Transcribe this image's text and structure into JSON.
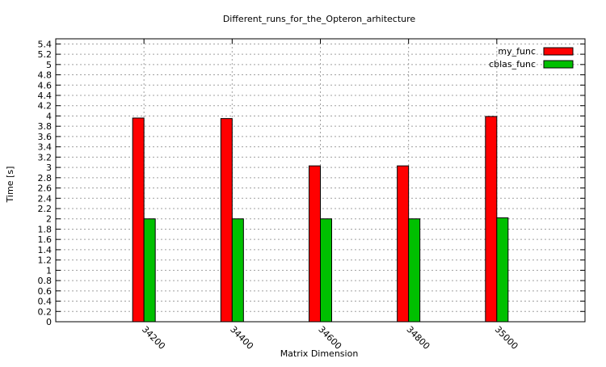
{
  "chart_data": {
    "type": "bar",
    "title": "Different_runs_for_the_Opteron_arhitecture",
    "xlabel": "Matrix Dimension",
    "ylabel": "Time [s]",
    "categories": [
      "34200",
      "34400",
      "34600",
      "34800",
      "35000"
    ],
    "series": [
      {
        "name": "my_func",
        "color": "#ff0000",
        "values": [
          3.96,
          3.95,
          3.03,
          3.03,
          3.99
        ]
      },
      {
        "name": "cblas_func",
        "color": "#00c000",
        "values": [
          2.0,
          2.0,
          2.0,
          2.0,
          2.02
        ]
      }
    ],
    "ylim": [
      0,
      5.5
    ],
    "yticks": [
      "0",
      "0.2",
      "0.4",
      "0.6",
      "0.8",
      "1",
      "1.2",
      "1.4",
      "1.6",
      "1.8",
      "2",
      "2.2",
      "2.4",
      "2.6",
      "2.8",
      "3",
      "3.2",
      "3.4",
      "3.6",
      "3.8",
      "4",
      "4.2",
      "4.4",
      "4.6",
      "4.8",
      "5",
      "5.2",
      "5.4"
    ],
    "grid": true,
    "legend_position": "top-right",
    "x_tick_label_rotation": "rotated"
  }
}
